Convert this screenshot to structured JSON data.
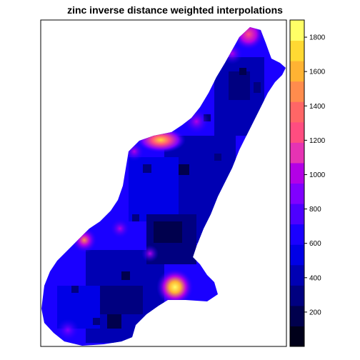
{
  "chart_data": {
    "type": "heatmap",
    "title": "zinc inverse distance weighted interpolations",
    "xlabel": "",
    "ylabel": "",
    "legend": "right",
    "colorbar": {
      "range": [
        0,
        1900
      ],
      "ticks": [
        200,
        400,
        600,
        800,
        1000,
        1200,
        1400,
        1600,
        1800
      ],
      "tick_labels": [
        "200",
        "400",
        "600",
        "800",
        "1000",
        "1200",
        "1400",
        "1600",
        "1800"
      ],
      "colors": [
        "#00001a",
        "#00004d",
        "#000080",
        "#0000b3",
        "#0000e6",
        "#1a00ff",
        "#4d00ff",
        "#8000ff",
        "#b300e6",
        "#e633b3",
        "#ff4d80",
        "#ff6666",
        "#ff8c4d",
        "#ffb333",
        "#ffd933",
        "#ffff66"
      ]
    },
    "map_extent_ticks_shown": false,
    "hotspots": [
      {
        "location": "northern tip",
        "value": 1000
      },
      {
        "location": "upper east edge",
        "value": 900
      },
      {
        "location": "middle bend north edge",
        "value": 1650
      },
      {
        "location": "western edge",
        "value": 1200
      },
      {
        "location": "southern notch",
        "value": 1850
      },
      {
        "location": "south-west tip",
        "value": 700
      }
    ]
  },
  "colors": {
    "background_low": "#0000b3",
    "background_mid": "#0000e6",
    "background_high": "#1a00ff"
  }
}
